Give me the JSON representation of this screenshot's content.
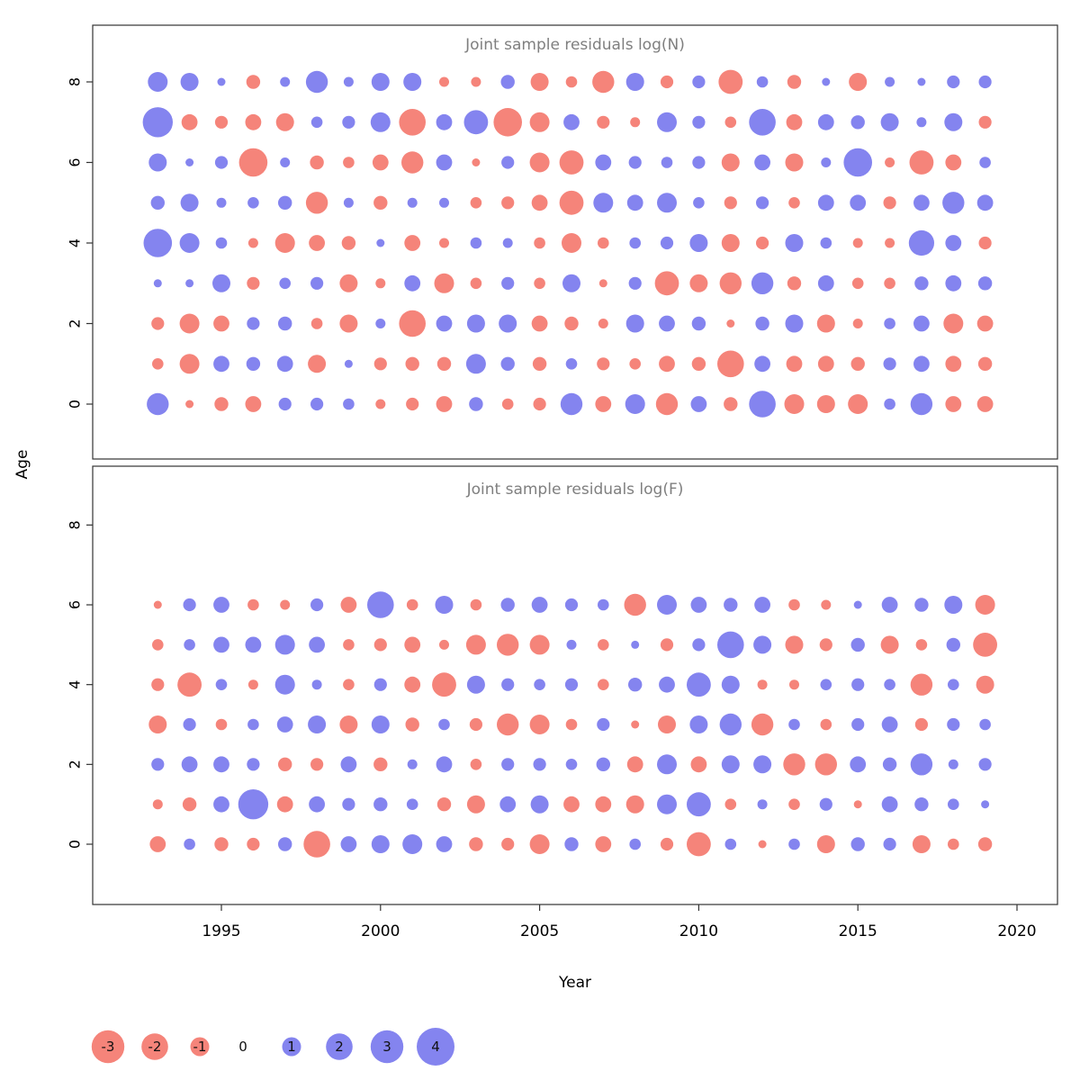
{
  "axis_labels": {
    "x": "Year",
    "y": "Age"
  },
  "colors": {
    "negative": "#f4796f",
    "positive": "#7a7aee",
    "title": "#7f7f7f",
    "axis_text": "#000000",
    "box_stroke": "#333333"
  },
  "legend": {
    "labels": [
      "-3",
      "-2",
      "-1",
      "0",
      "1",
      "2",
      "3",
      "4"
    ],
    "values": [
      -3,
      -2,
      -1,
      0,
      1,
      2,
      3,
      4
    ],
    "position": "bottom-left",
    "encoding": "circle area = |residual|, red = negative, blue = positive"
  },
  "chart_data": [
    {
      "type": "bubble",
      "title": "Joint sample residuals log(N)",
      "xlabel": "Year",
      "ylabel": "Age",
      "x": [
        1993,
        1994,
        1995,
        1996,
        1997,
        1998,
        1999,
        2000,
        2001,
        2002,
        2003,
        2004,
        2005,
        2006,
        2007,
        2008,
        2009,
        2010,
        2011,
        2012,
        2013,
        2014,
        2015,
        2016,
        2017,
        2018,
        2019
      ],
      "x_ticks": [
        1995,
        2000,
        2005,
        2010,
        2015,
        2020
      ],
      "y_ticks": [
        0,
        2,
        4,
        6,
        8
      ],
      "ylim": [
        -1,
        9
      ],
      "grid": false,
      "value_encoding": "sign mapped to color (negative red, positive blue); bubble area proportional to |value|; values estimated from bubble sizes",
      "series": [
        {
          "age": 0,
          "values": [
            1.5,
            -0.2,
            -0.6,
            -0.8,
            0.5,
            0.5,
            0.4,
            -0.3,
            -0.5,
            -0.8,
            0.6,
            -0.4,
            -0.5,
            1.5,
            -0.8,
            1.2,
            -1.5,
            0.8,
            -0.6,
            2.2,
            -1.2,
            -1.0,
            -1.2,
            0.4,
            1.5,
            -0.8,
            -0.8
          ]
        },
        {
          "age": 1,
          "values": [
            -0.4,
            -1.2,
            0.8,
            0.6,
            0.8,
            -1.0,
            0.2,
            -0.5,
            -0.6,
            -0.6,
            1.2,
            0.6,
            -0.6,
            0.4,
            -0.5,
            -0.4,
            -0.8,
            -0.6,
            -2.2,
            0.8,
            -0.8,
            -0.8,
            -0.6,
            0.5,
            0.8,
            -0.8,
            -0.6
          ]
        },
        {
          "age": 2,
          "values": [
            -0.5,
            -1.2,
            -0.8,
            0.5,
            0.6,
            -0.4,
            -1.0,
            0.3,
            -2.2,
            0.8,
            1.0,
            1.0,
            -0.8,
            -0.6,
            -0.3,
            1.0,
            0.8,
            0.6,
            -0.2,
            0.6,
            1.0,
            -1.0,
            -0.3,
            0.4,
            0.8,
            -1.2,
            -0.8
          ]
        },
        {
          "age": 3,
          "values": [
            0.2,
            0.2,
            1.0,
            -0.5,
            0.4,
            0.5,
            -1.0,
            -0.3,
            0.8,
            -1.2,
            -0.4,
            0.5,
            -0.4,
            1.0,
            -0.2,
            0.5,
            -1.8,
            -1.0,
            -1.5,
            1.5,
            -0.6,
            0.8,
            -0.4,
            -0.4,
            0.6,
            0.8,
            0.6
          ]
        },
        {
          "age": 4,
          "values": [
            2.5,
            1.2,
            0.4,
            -0.3,
            -1.2,
            -0.8,
            -0.6,
            0.2,
            -0.8,
            -0.3,
            0.4,
            0.3,
            -0.4,
            -1.2,
            -0.4,
            0.4,
            0.5,
            1.0,
            -1.0,
            -0.5,
            1.0,
            0.4,
            -0.3,
            -0.3,
            2.0,
            0.8,
            -0.5
          ]
        },
        {
          "age": 5,
          "values": [
            0.6,
            1.0,
            0.3,
            0.4,
            0.6,
            -1.5,
            0.3,
            -0.6,
            0.3,
            0.3,
            -0.4,
            -0.5,
            -0.8,
            -1.8,
            1.2,
            0.8,
            1.2,
            0.4,
            -0.5,
            0.5,
            -0.4,
            0.8,
            0.8,
            -0.5,
            0.8,
            1.5,
            0.8
          ]
        },
        {
          "age": 6,
          "values": [
            1.0,
            0.2,
            0.5,
            -2.5,
            0.3,
            -0.6,
            -0.4,
            -0.8,
            -1.5,
            0.8,
            -0.2,
            0.5,
            -1.2,
            -1.8,
            0.8,
            0.5,
            0.4,
            0.5,
            -1.0,
            0.8,
            -1.0,
            0.3,
            2.5,
            -0.3,
            -1.8,
            -0.8,
            0.4
          ]
        },
        {
          "age": 7,
          "values": [
            2.8,
            -0.8,
            -0.5,
            -0.8,
            -1.0,
            0.4,
            0.5,
            1.2,
            -2.2,
            0.8,
            1.8,
            -2.5,
            -1.2,
            0.8,
            -0.5,
            -0.3,
            1.2,
            0.5,
            -0.4,
            2.2,
            -0.8,
            0.8,
            0.6,
            1.0,
            0.3,
            1.0,
            -0.5
          ]
        },
        {
          "age": 8,
          "values": [
            1.2,
            1.0,
            0.2,
            -0.6,
            0.3,
            1.5,
            0.3,
            1.0,
            1.0,
            -0.3,
            -0.3,
            0.6,
            -1.0,
            -0.4,
            -1.5,
            1.0,
            -0.5,
            0.5,
            -1.8,
            0.4,
            -0.6,
            0.2,
            -1.0,
            0.3,
            0.2,
            0.5,
            0.5
          ]
        }
      ]
    },
    {
      "type": "bubble",
      "title": "Joint sample residuals log(F)",
      "xlabel": "Year",
      "ylabel": "Age",
      "x": [
        1993,
        1994,
        1995,
        1996,
        1997,
        1998,
        1999,
        2000,
        2001,
        2002,
        2003,
        2004,
        2005,
        2006,
        2007,
        2008,
        2009,
        2010,
        2011,
        2012,
        2013,
        2014,
        2015,
        2016,
        2017,
        2018,
        2019
      ],
      "x_ticks": [
        1995,
        2000,
        2005,
        2010,
        2015,
        2020
      ],
      "y_ticks": [
        0,
        2,
        4,
        6,
        8
      ],
      "ylim": [
        -1,
        9
      ],
      "grid": false,
      "value_encoding": "sign mapped to color (negative red, positive blue); bubble area proportional to |value|; values estimated from bubble sizes",
      "series": [
        {
          "age": 0,
          "values": [
            -0.8,
            0.4,
            -0.6,
            -0.5,
            0.6,
            -2.2,
            0.8,
            1.0,
            1.2,
            0.8,
            -0.6,
            -0.5,
            -1.2,
            0.6,
            -0.8,
            0.4,
            -0.5,
            -1.8,
            0.4,
            -0.2,
            0.4,
            -1.0,
            0.6,
            0.5,
            -1.0,
            -0.4,
            -0.6
          ]
        },
        {
          "age": 1,
          "values": [
            -0.3,
            -0.6,
            0.8,
            2.8,
            -0.8,
            0.8,
            0.5,
            0.6,
            0.4,
            -0.6,
            -1.0,
            0.8,
            1.0,
            -0.8,
            -0.8,
            -1.0,
            1.2,
            1.8,
            -0.4,
            0.3,
            -0.4,
            0.5,
            -0.2,
            0.8,
            0.6,
            0.4,
            0.2
          ]
        },
        {
          "age": 2,
          "values": [
            0.5,
            0.8,
            0.8,
            0.5,
            -0.6,
            -0.5,
            0.8,
            -0.6,
            0.3,
            0.8,
            -0.4,
            0.5,
            0.5,
            0.4,
            0.6,
            -0.8,
            1.2,
            -0.8,
            1.0,
            1.0,
            -1.5,
            -1.5,
            0.8,
            0.6,
            1.5,
            0.3,
            0.5
          ]
        },
        {
          "age": 3,
          "values": [
            -1.0,
            0.5,
            -0.4,
            0.4,
            0.8,
            1.0,
            -1.0,
            1.0,
            -0.6,
            0.4,
            -0.5,
            -1.5,
            -1.2,
            -0.4,
            0.5,
            -0.2,
            -1.0,
            1.0,
            1.5,
            -1.5,
            0.4,
            -0.4,
            0.5,
            0.8,
            -0.5,
            0.5,
            0.4
          ]
        },
        {
          "age": 4,
          "values": [
            -0.5,
            -1.8,
            0.4,
            -0.3,
            1.2,
            0.3,
            -0.4,
            0.5,
            -0.8,
            -1.8,
            1.0,
            0.5,
            0.4,
            0.5,
            -0.4,
            0.6,
            0.8,
            1.8,
            1.0,
            -0.3,
            -0.3,
            0.4,
            0.5,
            0.4,
            -1.5,
            0.4,
            -1.0
          ]
        },
        {
          "age": 5,
          "values": [
            -0.4,
            0.4,
            0.8,
            0.8,
            1.2,
            0.8,
            -0.4,
            -0.5,
            -0.8,
            -0.3,
            -1.2,
            -1.5,
            -1.2,
            0.3,
            -0.4,
            0.2,
            -0.5,
            0.5,
            2.2,
            1.0,
            -1.0,
            -0.5,
            0.6,
            -1.0,
            -0.4,
            0.6,
            -1.8
          ]
        },
        {
          "age": 6,
          "values": [
            -0.2,
            0.5,
            0.8,
            -0.4,
            -0.3,
            0.5,
            -0.8,
            2.2,
            -0.4,
            1.0,
            -0.4,
            0.6,
            0.8,
            0.5,
            0.4,
            -1.5,
            1.2,
            0.8,
            0.6,
            0.8,
            -0.4,
            -0.3,
            0.2,
            0.8,
            0.6,
            1.0,
            -1.2
          ]
        }
      ]
    }
  ]
}
